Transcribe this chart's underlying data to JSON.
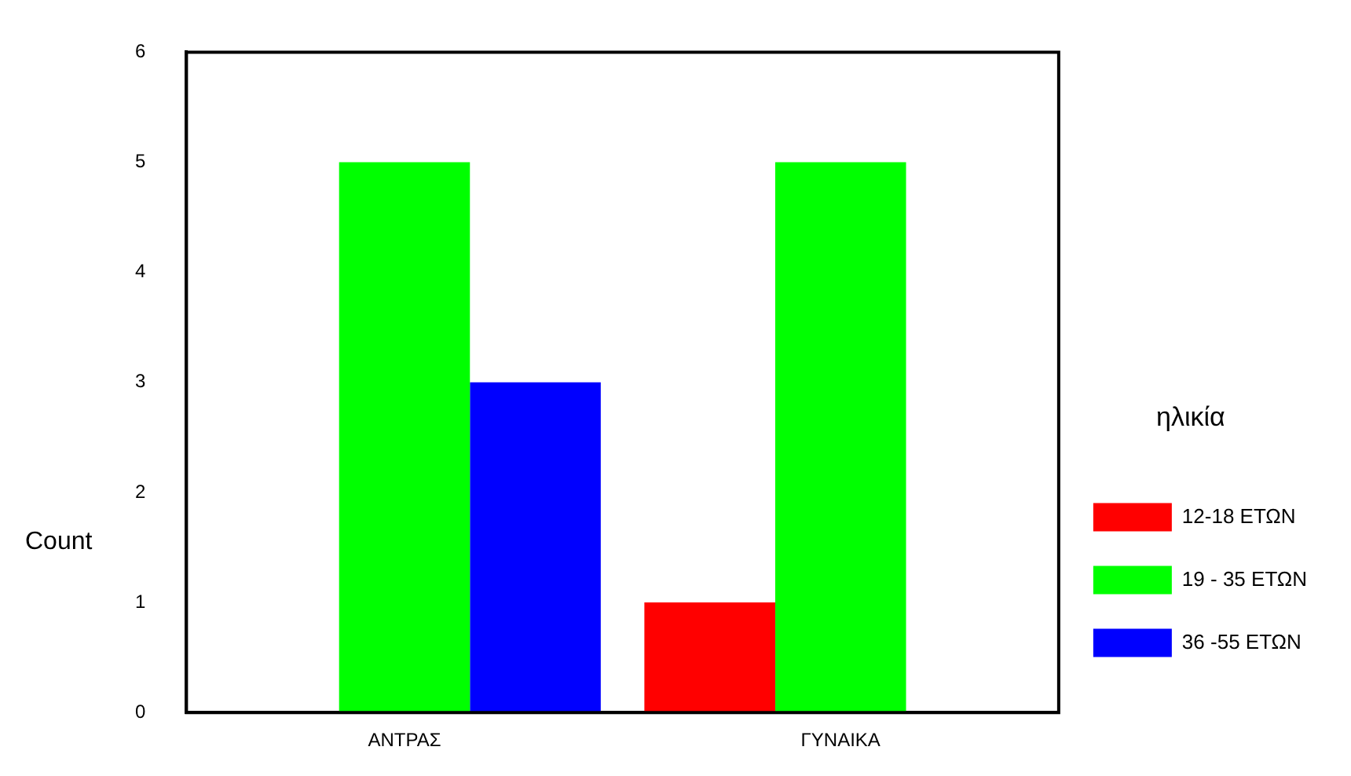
{
  "chart_data": {
    "type": "bar",
    "ylabel": "Count",
    "legend_title": "ηλικία",
    "categories": [
      "ΑΝΤΡΑΣ",
      "ΓΥΝΑΙΚΑ"
    ],
    "series": [
      {
        "name": "12-18 ΕΤΩΝ",
        "color": "#ff0000",
        "values": [
          0,
          1
        ]
      },
      {
        "name": "19 - 35 ΕΤΩΝ",
        "color": "#00ff00",
        "values": [
          5,
          5
        ]
      },
      {
        "name": "36 -55 ΕΤΩΝ",
        "color": "#0000ff",
        "values": [
          3,
          0
        ]
      }
    ],
    "ylim": [
      0,
      6
    ],
    "yticks": [
      0,
      1,
      2,
      3,
      4,
      5,
      6
    ],
    "grid": false,
    "legend": "right"
  }
}
